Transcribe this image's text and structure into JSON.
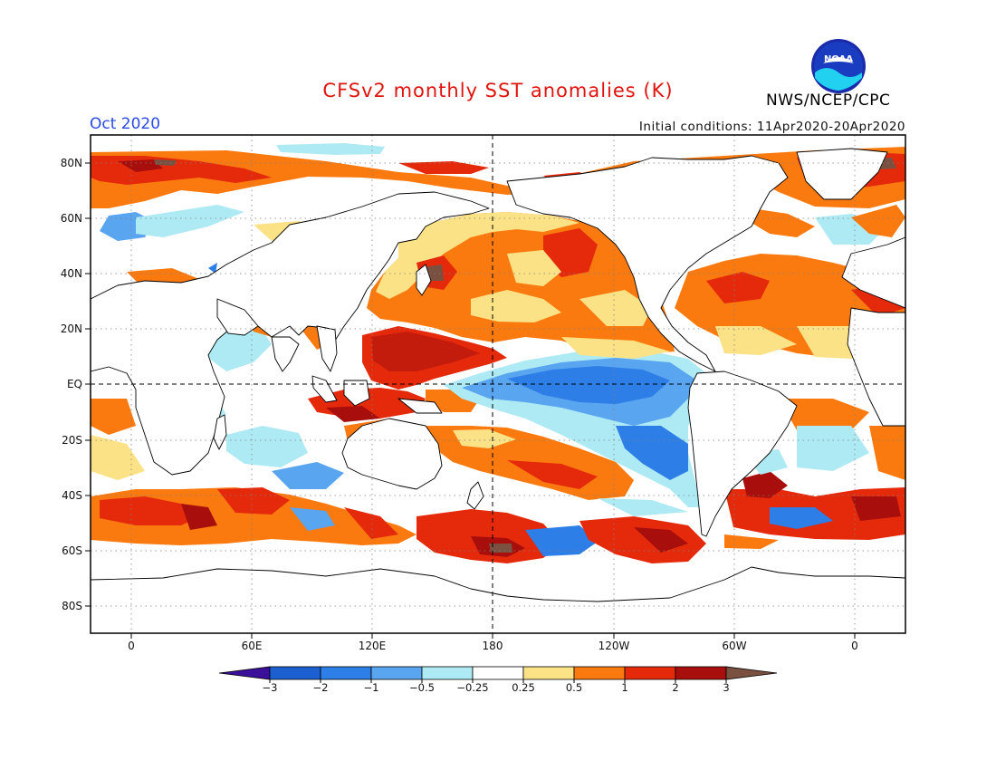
{
  "header": {
    "title": "CFSv2 monthly SST anomalies (K)",
    "month": "Oct 2020",
    "initial_conditions": "Initial conditions: 11Apr2020-20Apr2020",
    "org": "NWS/NCEP/CPC",
    "logo_text": "NOAA"
  },
  "map": {
    "lat_labels": [
      "80N",
      "60N",
      "40N",
      "20N",
      "EQ",
      "20S",
      "40S",
      "60S",
      "80S"
    ],
    "lon_labels": [
      "0",
      "60E",
      "120E",
      "180",
      "120W",
      "60W",
      "0"
    ],
    "projection": "cylindrical equidistant, 20W–380E (centered near 180)",
    "grid": "dotted, 20° lat / 60° lon",
    "reference_lines": [
      "equator (dashed)",
      "180 meridian (dashed)"
    ]
  },
  "colorbar": {
    "tick_labels": [
      "-3",
      "-2",
      "-1",
      "-0.5",
      "-0.25",
      "0.25",
      "0.5",
      "1",
      "2",
      "3"
    ],
    "colors": [
      "#3a0f9a",
      "#1c5fd0",
      "#2d7ee6",
      "#5aa5f0",
      "#aeeaf4",
      "#ffffff",
      "#fbe286",
      "#fb7a10",
      "#e52a0c",
      "#a80e0c",
      "#7a5040"
    ]
  },
  "colors": {
    "title": "#e0140e",
    "month": "#2a4be6"
  }
}
